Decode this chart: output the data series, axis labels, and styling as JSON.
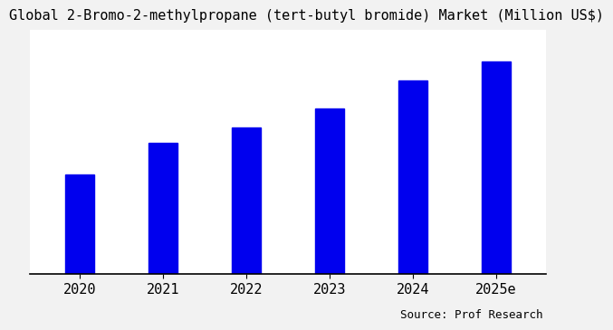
{
  "title": "Global 2-Bromo-2-methylpropane (tert-butyl bromide) Market (Million US$)",
  "categories": [
    "2020",
    "2021",
    "2022",
    "2023",
    "2024",
    "2025e"
  ],
  "values": [
    32,
    42,
    47,
    53,
    62,
    68
  ],
  "bar_color": "#0000EE",
  "background_color": "#f2f2f2",
  "plot_bg_color": "#ffffff",
  "source_text": "Source: Prof Research",
  "title_fontsize": 11,
  "xlabel_fontsize": 11,
  "source_fontsize": 9,
  "bar_width": 0.35
}
